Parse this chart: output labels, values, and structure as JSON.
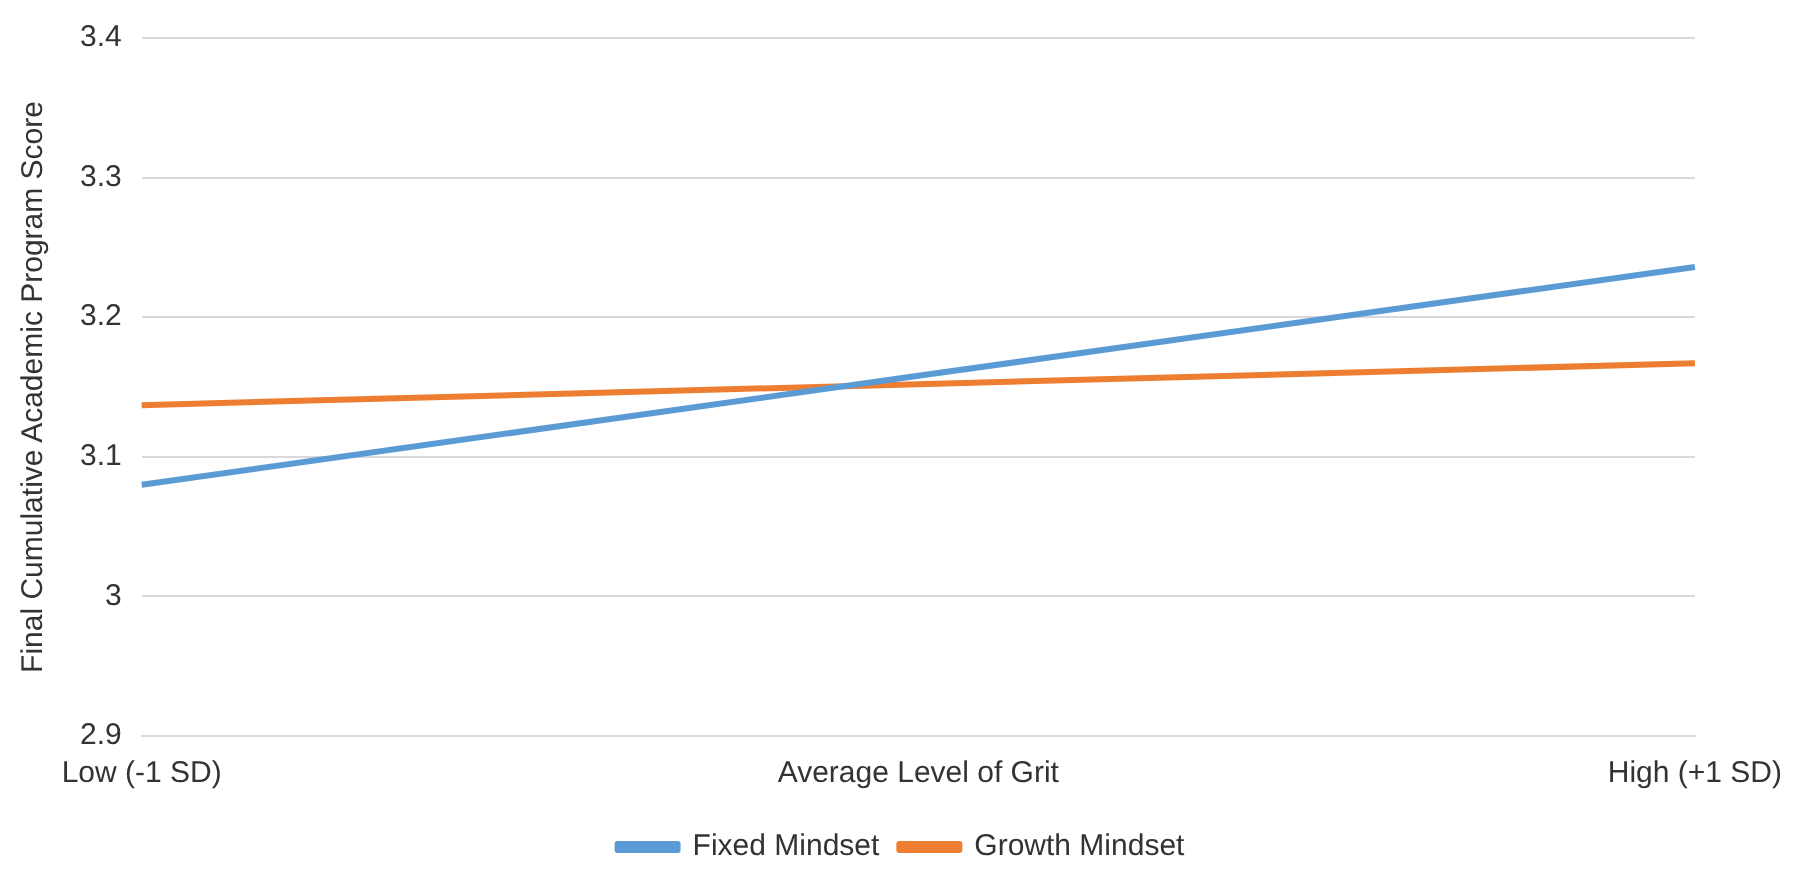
{
  "chart_data": {
    "type": "line",
    "ylabel": "Final Cumulative Academic Program Score",
    "categories": [
      "Low (-1 SD)",
      "Average Level of Grit",
      "High (+1 SD)"
    ],
    "series": [
      {
        "name": "Fixed Mindset",
        "color": "#5b9bd5",
        "values": [
          3.08,
          3.158,
          3.236
        ]
      },
      {
        "name": "Growth Mindset",
        "color": "#ed7d31",
        "values": [
          3.137,
          3.152,
          3.167
        ]
      }
    ],
    "ylim": [
      2.9,
      3.4
    ],
    "yticks": [
      2.9,
      3,
      3.1,
      3.2,
      3.3,
      3.4
    ],
    "grid": "y",
    "legend": "bottom",
    "marker": "none",
    "line_style": "solid"
  }
}
